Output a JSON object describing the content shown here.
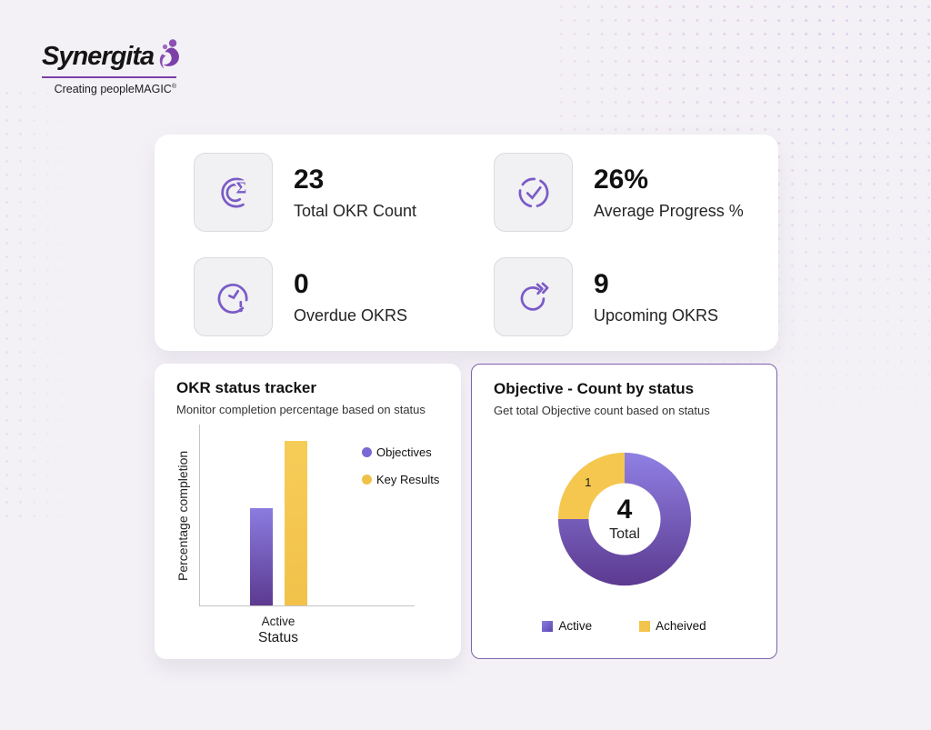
{
  "logo": {
    "name": "Synergita",
    "tagline": "Creating peopleMAGIC",
    "registered_mark": "®"
  },
  "kpis": [
    {
      "value": "23",
      "label": "Total OKR Count",
      "icon": "okr-count-icon"
    },
    {
      "value": "26%",
      "label": "Average Progress %",
      "icon": "progress-check-icon"
    },
    {
      "value": "0",
      "label": "Overdue OKRS",
      "icon": "overdue-clock-icon"
    },
    {
      "value": "9",
      "label": "Upcoming OKRS",
      "icon": "upcoming-refresh-icon"
    }
  ],
  "chart_data": [
    {
      "type": "bar",
      "title": "OKR status tracker",
      "subtitle": "Monitor completion percentage based on status",
      "categories": [
        "Active"
      ],
      "series": [
        {
          "name": "Objectives",
          "value": 54,
          "color": "purple-gradient"
        },
        {
          "name": "Key Results",
          "value": 91,
          "color": "#f2c24a"
        }
      ],
      "xlabel": "Status",
      "ylabel": "Percentage completion",
      "ylim": [
        0,
        100
      ],
      "y_ticks_labeled": false,
      "grid": false,
      "legend_position": "right"
    },
    {
      "type": "pie",
      "variant": "donut",
      "title": "Objective - Count by status",
      "subtitle": "Get total Objective count based on status",
      "slices": [
        {
          "label": "Active",
          "value": 3,
          "fill_ref": "purple-gradient",
          "label_shown": false
        },
        {
          "label": "Acheived",
          "value": 1,
          "fill_ref": "yellow",
          "label_shown": true,
          "label_text": "1"
        }
      ],
      "total": 4,
      "center_value": "4",
      "center_label": "Total",
      "start_angle_deg": 0,
      "direction": "clockwise",
      "legend_position": "bottom"
    }
  ],
  "colors": {
    "accent_purple": "#7a5bc7",
    "bar_purple_top": "#8b7ce0",
    "bar_purple_bottom": "#5c3a90",
    "bar_yellow": "#f2c24a",
    "donut_purple_top": "#8f80e3",
    "donut_purple_bottom": "#5c3a90",
    "donut_yellow": "#f5c74e",
    "card_border_purple": "#7e62ad",
    "logo_purple": "#7c3fa8",
    "background": "#f4f1f6"
  }
}
